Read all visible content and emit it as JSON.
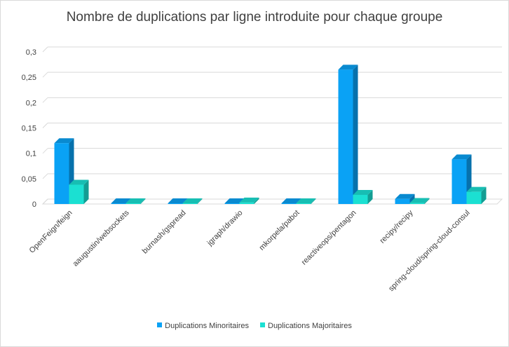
{
  "chart_data": {
    "type": "bar",
    "title": "Nombre de duplications par ligne introduite pour chaque groupe",
    "categories": [
      "OpenFeign/feign",
      "aaugustin/websockets",
      "burnash/gspread",
      "jgraph/drawio",
      "mkorpela/pabot",
      "reactiveops/pentagon",
      "recipy/recipy",
      "spring-cloud/spring-cloud-consul"
    ],
    "series": [
      {
        "name": "Duplications Minoritaires",
        "color": "#0aa2f5",
        "values": [
          0.12,
          0.0,
          0.0,
          0.0,
          0.0,
          0.265,
          0.01,
          0.088
        ]
      },
      {
        "name": "Duplications Majoritaires",
        "color": "#1be0d2",
        "values": [
          0.038,
          0.001,
          0.0,
          0.003,
          0.0,
          0.018,
          0.002,
          0.024
        ]
      }
    ],
    "yticks": [
      "0",
      "0,05",
      "0,1",
      "0,15",
      "0,2",
      "0,25",
      "0,3"
    ],
    "ylim": [
      0,
      0.3
    ],
    "grid": true,
    "legend": "bottom",
    "three_d": true
  }
}
